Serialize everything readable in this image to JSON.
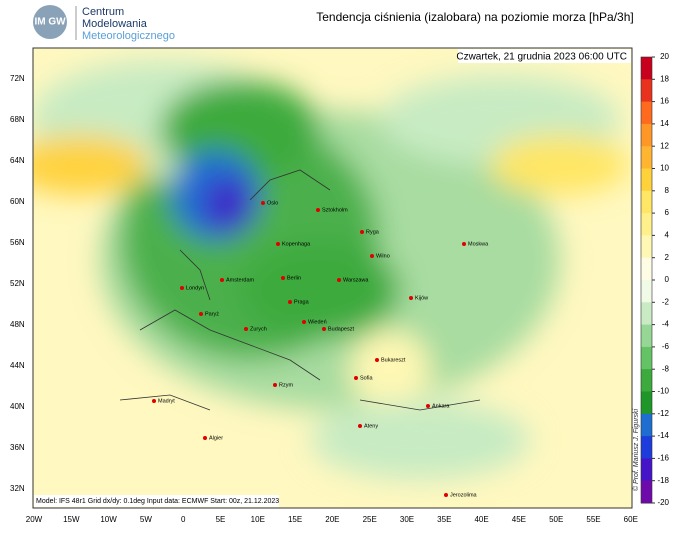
{
  "header": {
    "logo": "IM GW",
    "org": [
      "Centrum",
      "Modelowania",
      "Meteorologicznego"
    ],
    "title": "Tendencja ciśnienia (izalobara) na poziomie morza  [hPa/3h]",
    "date": "Czwartek, 21 grudnia 2023 06:00 UTC"
  },
  "map": {
    "lat_labels": [
      "72N",
      "68N",
      "64N",
      "60N",
      "56N",
      "52N",
      "48N",
      "44N",
      "40N",
      "36N",
      "32N"
    ],
    "lon_labels": [
      "20W",
      "15W",
      "10W",
      "5W",
      "0",
      "5E",
      "10E",
      "15E",
      "20E",
      "25E",
      "30E",
      "35E",
      "40E",
      "45E",
      "50E",
      "55E",
      "60E"
    ],
    "cities": [
      "Oslo",
      "Sztokholm",
      "Ryga",
      "Moskwa",
      "Kopenhaga",
      "Wilno",
      "Berlin",
      "Amsterdam",
      "Londyn",
      "Warszawa",
      "Paryż",
      "Praga",
      "Kijów",
      "Zurych",
      "Wiedeń",
      "Budapeszt",
      "Bukareszt",
      "Sofia",
      "Rzym",
      "Madryt",
      "Ateny",
      "Ankara",
      "Algier",
      "Jerozolima"
    ]
  },
  "colorbar": {
    "ticks": [
      20,
      18,
      16,
      14,
      12,
      10,
      8,
      6,
      4,
      2,
      0,
      -2,
      -4,
      -6,
      -8,
      -10,
      -12,
      -14,
      -16,
      -18,
      -20
    ],
    "colors": [
      "#c8001e",
      "#e8321e",
      "#ff6a1e",
      "#ff9628",
      "#ffb432",
      "#ffd23c",
      "#ffe664",
      "#fff08c",
      "#fff8b4",
      "#fffce6",
      "#f0fae6",
      "#c8ebc3",
      "#96d796",
      "#64c364",
      "#3caa3c",
      "#1e9628",
      "#1e6ed2",
      "#1e3cdc",
      "#4614c8",
      "#6e0aaa"
    ]
  },
  "footer": {
    "info": "Model: IFS 48r1  Grid dx/dy: 0.1deg  Input data: ECMWF  Start: 00z, 21.12.2023",
    "copyright": "© Prof. Mariusz J. Figurski"
  }
}
